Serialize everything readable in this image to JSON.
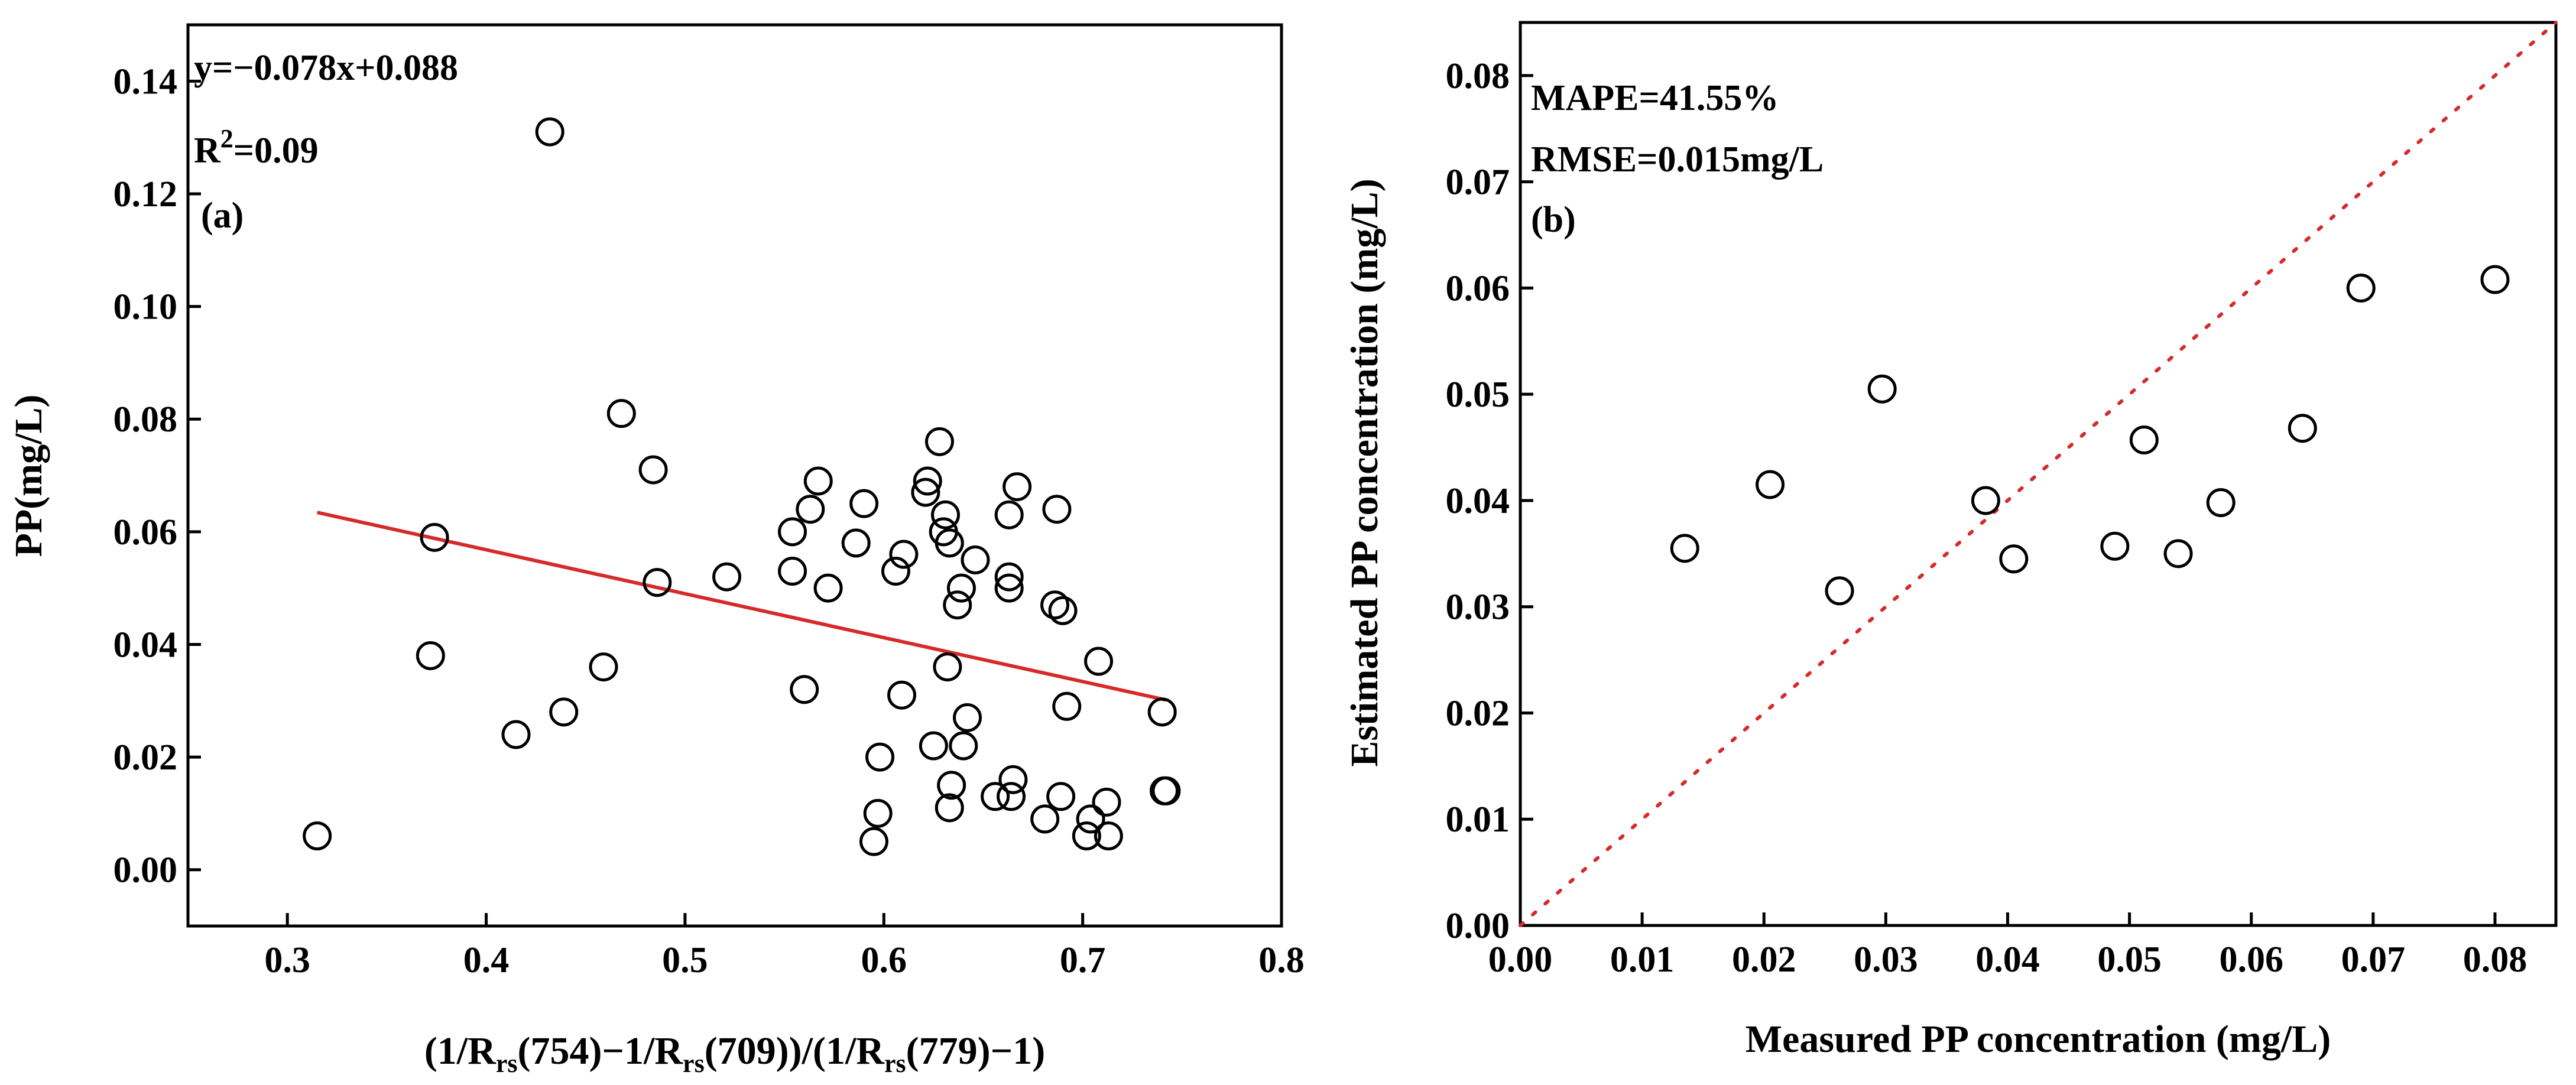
{
  "chart_data": [
    {
      "id": "a",
      "type": "scatter",
      "panel_label": "(a)",
      "equation": "y=−0.078x+0.088",
      "r2_prefix": "R",
      "r2_sup": "2",
      "r2_suffix": "=0.09",
      "ylabel": "PP(mg/L)",
      "xlabel_parts": [
        {
          "t": "(1/R",
          "sub": false
        },
        {
          "t": "rs",
          "sub": true
        },
        {
          "t": "(754)−1/R",
          "sub": false
        },
        {
          "t": "rs",
          "sub": true
        },
        {
          "t": "(709))/(1/R",
          "sub": false
        },
        {
          "t": "rs",
          "sub": true
        },
        {
          "t": "(779)−1)",
          "sub": false
        }
      ],
      "xlim": [
        0.25,
        0.8
      ],
      "ylim": [
        -0.01,
        0.15
      ],
      "xticks": [
        0.3,
        0.4,
        0.5,
        0.6,
        0.7,
        0.8
      ],
      "xtick_labels": [
        "0.3",
        "0.4",
        "0.5",
        "0.6",
        "0.7",
        "0.8"
      ],
      "yticks": [
        0.0,
        0.02,
        0.04,
        0.06,
        0.08,
        0.1,
        0.12,
        0.14
      ],
      "ytick_labels": [
        "0.00",
        "0.02",
        "0.04",
        "0.06",
        "0.08",
        "0.10",
        "0.12",
        "0.14"
      ],
      "fit_line": {
        "x": [
          0.315,
          0.742
        ],
        "slope": -0.078,
        "intercept": 0.088,
        "color": "#d62a2a"
      },
      "points": [
        [
          0.315,
          0.006
        ],
        [
          0.432,
          0.131
        ],
        [
          0.468,
          0.081
        ],
        [
          0.484,
          0.071
        ],
        [
          0.374,
          0.059
        ],
        [
          0.486,
          0.051
        ],
        [
          0.372,
          0.038
        ],
        [
          0.459,
          0.036
        ],
        [
          0.415,
          0.024
        ],
        [
          0.439,
          0.028
        ],
        [
          0.521,
          0.052
        ],
        [
          0.554,
          0.053
        ],
        [
          0.554,
          0.06
        ],
        [
          0.563,
          0.064
        ],
        [
          0.567,
          0.069
        ],
        [
          0.572,
          0.05
        ],
        [
          0.56,
          0.032
        ],
        [
          0.586,
          0.058
        ],
        [
          0.59,
          0.065
        ],
        [
          0.598,
          0.02
        ],
        [
          0.597,
          0.01
        ],
        [
          0.595,
          0.005
        ],
        [
          0.606,
          0.053
        ],
        [
          0.61,
          0.056
        ],
        [
          0.609,
          0.031
        ],
        [
          0.621,
          0.067
        ],
        [
          0.622,
          0.069
        ],
        [
          0.628,
          0.076
        ],
        [
          0.63,
          0.06
        ],
        [
          0.631,
          0.063
        ],
        [
          0.633,
          0.058
        ],
        [
          0.637,
          0.047
        ],
        [
          0.639,
          0.05
        ],
        [
          0.646,
          0.055
        ],
        [
          0.632,
          0.036
        ],
        [
          0.642,
          0.027
        ],
        [
          0.64,
          0.022
        ],
        [
          0.625,
          0.022
        ],
        [
          0.634,
          0.015
        ],
        [
          0.633,
          0.011
        ],
        [
          0.656,
          0.013
        ],
        [
          0.664,
          0.013
        ],
        [
          0.665,
          0.016
        ],
        [
          0.663,
          0.05
        ],
        [
          0.663,
          0.052
        ],
        [
          0.663,
          0.063
        ],
        [
          0.667,
          0.068
        ],
        [
          0.687,
          0.064
        ],
        [
          0.686,
          0.047
        ],
        [
          0.69,
          0.046
        ],
        [
          0.689,
          0.013
        ],
        [
          0.681,
          0.009
        ],
        [
          0.692,
          0.029
        ],
        [
          0.708,
          0.037
        ],
        [
          0.702,
          0.006
        ],
        [
          0.704,
          0.009
        ],
        [
          0.712,
          0.012
        ],
        [
          0.713,
          0.006
        ],
        [
          0.74,
          0.028
        ],
        [
          0.741,
          0.014
        ],
        [
          0.742,
          0.014
        ]
      ]
    },
    {
      "id": "b",
      "type": "scatter",
      "panel_label": "(b)",
      "mape": "MAPE=41.55%",
      "rmse": "RMSE=0.015mg/L",
      "xlabel": "Measured PP concentration (mg/L)",
      "ylabel": "Estimated PP concentration (mg/L)",
      "xlim": [
        0.0,
        0.085
      ],
      "ylim": [
        0.0,
        0.085
      ],
      "xticks": [
        0.0,
        0.01,
        0.02,
        0.03,
        0.04,
        0.05,
        0.06,
        0.07,
        0.08
      ],
      "xtick_labels": [
        "0.00",
        "0.01",
        "0.02",
        "0.03",
        "0.04",
        "0.05",
        "0.06",
        "0.07",
        "0.08"
      ],
      "yticks": [
        0.0,
        0.01,
        0.02,
        0.03,
        0.04,
        0.05,
        0.06,
        0.07,
        0.08
      ],
      "ytick_labels": [
        "0.00",
        "0.01",
        "0.02",
        "0.03",
        "0.04",
        "0.05",
        "0.06",
        "0.07",
        "0.08"
      ],
      "reference_line": {
        "x": [
          0.0,
          0.085
        ],
        "y": [
          0.0,
          0.085
        ],
        "style": "dotted",
        "color": "#d62a2a"
      },
      "points": [
        [
          0.0135,
          0.0355
        ],
        [
          0.0205,
          0.0415
        ],
        [
          0.0262,
          0.0315
        ],
        [
          0.0297,
          0.0505
        ],
        [
          0.0382,
          0.04
        ],
        [
          0.0405,
          0.0345
        ],
        [
          0.0488,
          0.0357
        ],
        [
          0.0512,
          0.0457
        ],
        [
          0.054,
          0.035
        ],
        [
          0.0575,
          0.0398
        ],
        [
          0.0642,
          0.0468
        ],
        [
          0.069,
          0.06
        ],
        [
          0.08,
          0.0608
        ]
      ]
    }
  ]
}
